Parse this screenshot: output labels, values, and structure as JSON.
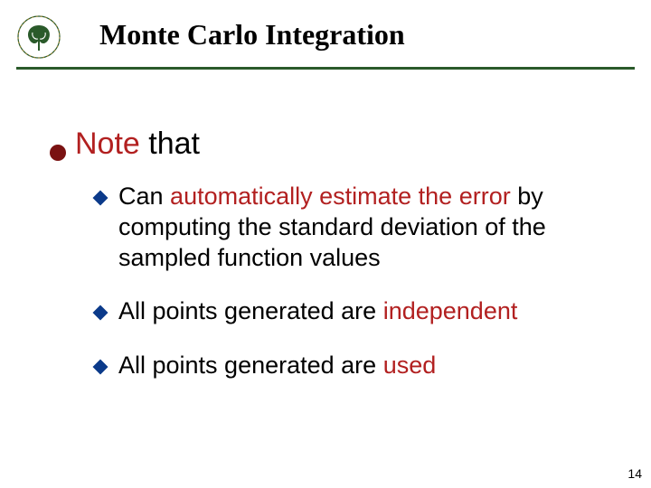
{
  "title": "Monte Carlo Integration",
  "colors": {
    "rule": "#2a5a2a",
    "bullet_level1": "#7a1212",
    "bullet_level2": "#0b3a8a",
    "highlight": "#b22020",
    "text": "#000000",
    "background": "#ffffff",
    "logo_dark": "#2a5a2a",
    "logo_accent": "#b28a2a"
  },
  "typography": {
    "title_size_pt": 32,
    "level1_size_pt": 34,
    "level2_size_pt": 27,
    "pagenum_size_pt": 14,
    "title_family": "Times New Roman",
    "body_family": "Trebuchet MS"
  },
  "body": {
    "level1": {
      "prefix": "Note",
      "rest": " that"
    },
    "level2": [
      {
        "parts": [
          {
            "t": "Can ",
            "hl": false
          },
          {
            "t": "automatically estimate the error",
            "hl": true
          },
          {
            "t": " by computing the standard deviation of the sampled function values",
            "hl": false
          }
        ]
      },
      {
        "parts": [
          {
            "t": "All points generated are ",
            "hl": false
          },
          {
            "t": "independent",
            "hl": true
          }
        ]
      },
      {
        "parts": [
          {
            "t": "All points generated are ",
            "hl": false
          },
          {
            "t": "used",
            "hl": true
          }
        ]
      }
    ]
  },
  "page_number": "14"
}
